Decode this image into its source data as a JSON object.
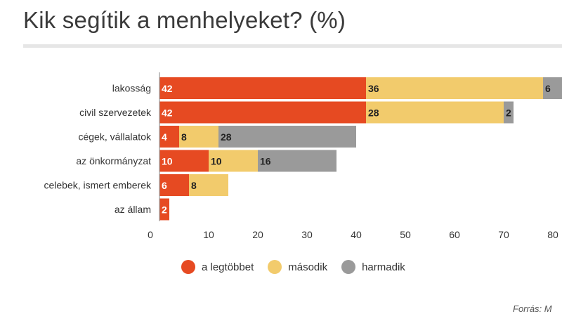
{
  "title": "Kik segítik a menhelyeket? (%)",
  "source": "Forrás: M",
  "chart_data": {
    "type": "bar",
    "orientation": "horizontal",
    "stacked": true,
    "title": "Kik segítik a menhelyeket? (%)",
    "categories": [
      "lakosság",
      "civil szervezetek",
      "cégek, vállalatok",
      "az önkormányzat",
      "celebek, ismert emberek",
      "az állam"
    ],
    "series": [
      {
        "name": "a legtöbbet",
        "color": "#e64a22",
        "label_color": "#ffffff",
        "values": [
          42,
          42,
          4,
          10,
          6,
          2
        ]
      },
      {
        "name": "második",
        "color": "#f2cb6c",
        "label_color": "#222222",
        "values": [
          36,
          28,
          8,
          10,
          8,
          0
        ]
      },
      {
        "name": "harmadik",
        "color": "#9a9a9a",
        "label_color": "#222222",
        "values": [
          6,
          2,
          28,
          16,
          0,
          0
        ]
      }
    ],
    "xlim": [
      0,
      82
    ],
    "xticks": [
      0,
      10,
      20,
      30,
      40,
      50,
      60,
      70,
      80
    ],
    "legend_position": "bottom"
  }
}
